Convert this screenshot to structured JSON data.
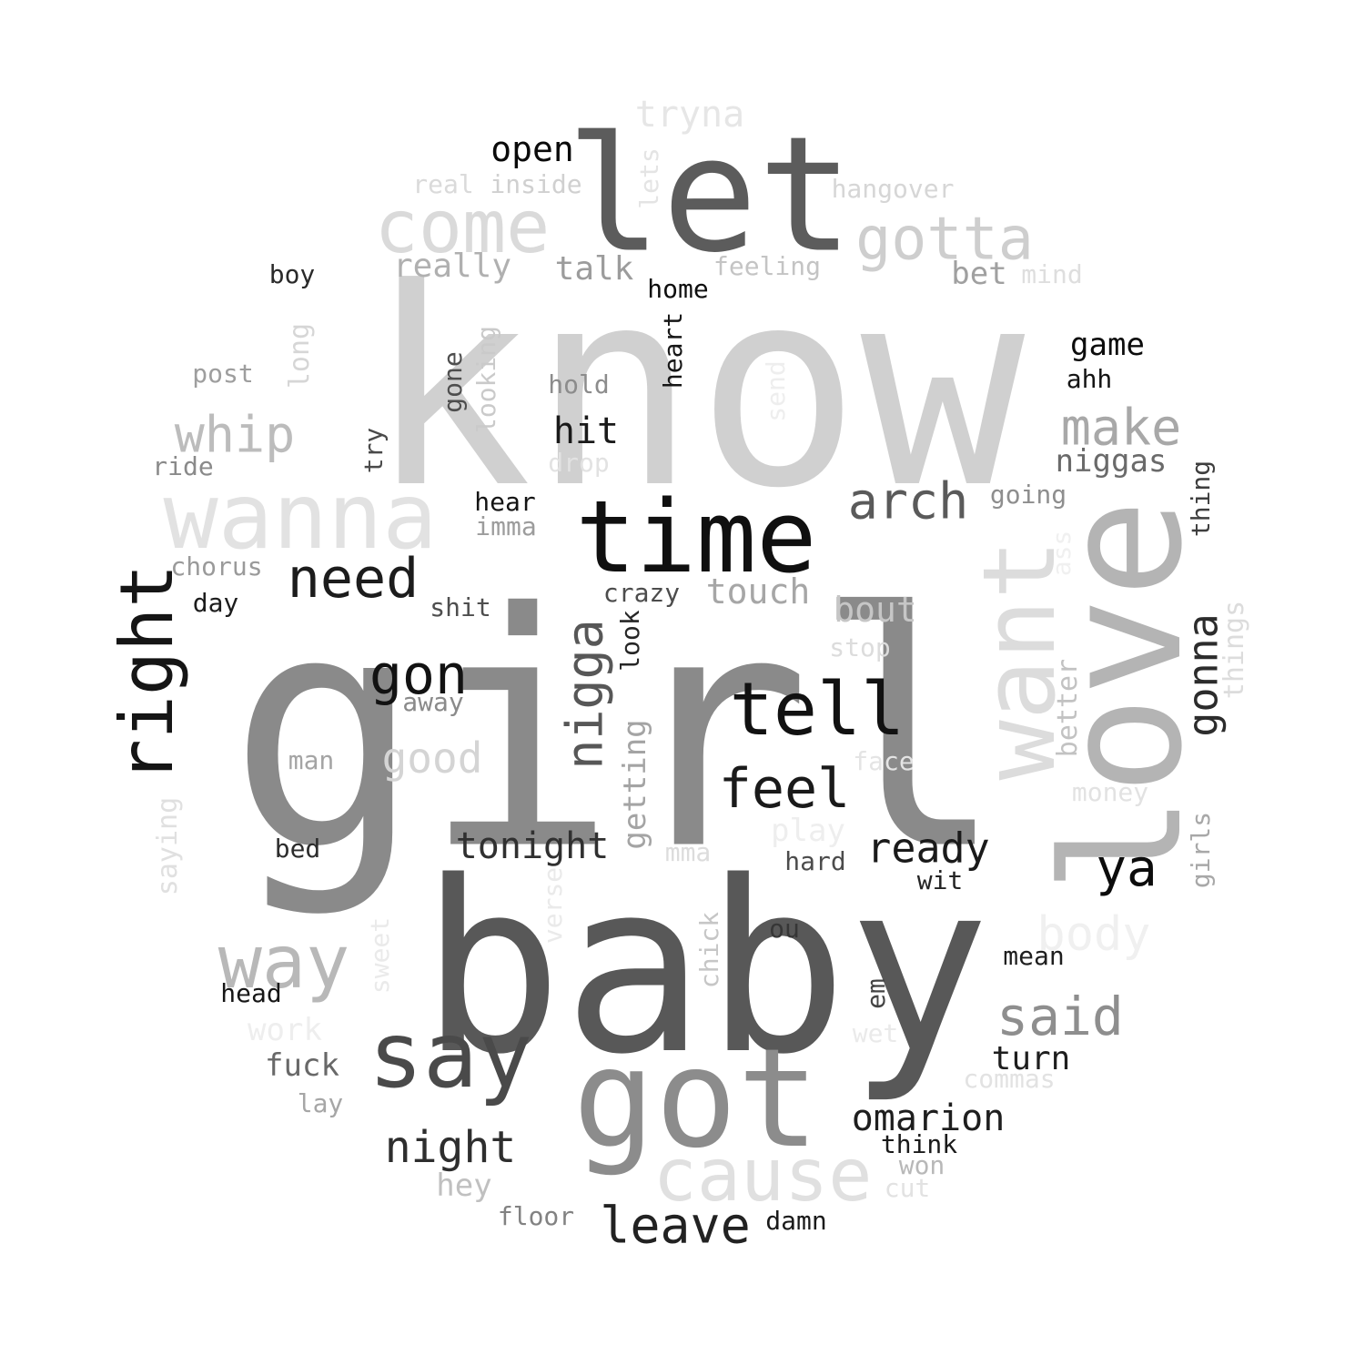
{
  "words": [
    {
      "text": "know",
      "color": "#d0d0d0"
    },
    {
      "text": "girl",
      "color": "#8a8a8a"
    },
    {
      "text": "baby",
      "color": "#585858"
    },
    {
      "text": "let",
      "color": "#5c5c5c"
    },
    {
      "text": "love",
      "color": "#b4b4b4"
    },
    {
      "text": "time",
      "color": "#101010"
    },
    {
      "text": "got",
      "color": "#8c8c8c"
    },
    {
      "text": "want",
      "color": "#dcdcdc"
    },
    {
      "text": "wanna",
      "color": "#e2e2e2"
    },
    {
      "text": "come",
      "color": "#dadada"
    },
    {
      "text": "cause",
      "color": "#e0e0e0"
    },
    {
      "text": "say",
      "color": "#4a4a4a"
    },
    {
      "text": "tell",
      "color": "#111111"
    },
    {
      "text": "gotta",
      "color": "#cecece"
    },
    {
      "text": "right",
      "color": "#151515"
    },
    {
      "text": "need",
      "color": "#1c1c1c"
    },
    {
      "text": "way",
      "color": "#b8b8b8"
    },
    {
      "text": "feel",
      "color": "#1a1a1a"
    },
    {
      "text": "arch",
      "color": "#5a5a5a"
    },
    {
      "text": "make",
      "color": "#a8a8a8"
    },
    {
      "text": "nigga",
      "color": "#575757"
    },
    {
      "text": "gonna",
      "color": "#2c2c2c"
    },
    {
      "text": "gon",
      "color": "#121212"
    },
    {
      "text": "whip",
      "color": "#bcbcbc"
    },
    {
      "text": "said",
      "color": "#8e8e8e"
    },
    {
      "text": "leave",
      "color": "#222222"
    },
    {
      "text": "night",
      "color": "#2e2e2e"
    },
    {
      "text": "body",
      "color": "#f0f0f0"
    },
    {
      "text": "ya",
      "color": "#0c0c0c"
    },
    {
      "text": "good",
      "color": "#d4d4d4"
    },
    {
      "text": "omarion",
      "color": "#1e1e1e"
    },
    {
      "text": "tonight",
      "color": "#303030"
    },
    {
      "text": "ready",
      "color": "#1a1a1a"
    },
    {
      "text": "open",
      "color": "#0a0a0a"
    },
    {
      "text": "really",
      "color": "#b0b0b0"
    },
    {
      "text": "touch",
      "color": "#a6a6a6"
    },
    {
      "text": "bout",
      "color": "#c6c6c6"
    },
    {
      "text": "hit",
      "color": "#1a1a1a"
    },
    {
      "text": "talk",
      "color": "#9c9c9c"
    },
    {
      "text": "tryna",
      "color": "#e6e6e6"
    },
    {
      "text": "turn",
      "color": "#1e1e1e"
    },
    {
      "text": "niggas",
      "color": "#6a6a6a"
    },
    {
      "text": "getting",
      "color": "#a4a4a4"
    },
    {
      "text": "bet",
      "color": "#a0a0a0"
    },
    {
      "text": "game",
      "color": "#0c0c0c"
    },
    {
      "text": "fuck",
      "color": "#686868"
    },
    {
      "text": "hey",
      "color": "#c0c0c0"
    },
    {
      "text": "work",
      "color": "#eeeeee"
    },
    {
      "text": "play",
      "color": "#eeeeee"
    },
    {
      "text": "better",
      "color": "#c2c2c2"
    },
    {
      "text": "things",
      "color": "#dcdcdc"
    },
    {
      "text": "long",
      "color": "#d6d6d6"
    },
    {
      "text": "saying",
      "color": "#e0e0e0"
    },
    {
      "text": "hangover",
      "color": "#d6d6d6"
    },
    {
      "text": "real",
      "color": "#dadada"
    },
    {
      "text": "inside",
      "color": "#d0d0d0"
    },
    {
      "text": "lets",
      "color": "#e4e4e4"
    },
    {
      "text": "feeling",
      "color": "#c4c4c4"
    },
    {
      "text": "mind",
      "color": "#dedede"
    },
    {
      "text": "boy",
      "color": "#2a2a2a"
    },
    {
      "text": "home",
      "color": "#0e0e0e"
    },
    {
      "text": "heart",
      "color": "#161616"
    },
    {
      "text": "hold",
      "color": "#8c8c8c"
    },
    {
      "text": "looking",
      "color": "#cacaca"
    },
    {
      "text": "gone",
      "color": "#4e4e4e"
    },
    {
      "text": "post",
      "color": "#9e9e9e"
    },
    {
      "text": "try",
      "color": "#4a4a4a"
    },
    {
      "text": "ride",
      "color": "#8a8a8a"
    },
    {
      "text": "drop",
      "color": "#e2e2e2"
    },
    {
      "text": "send",
      "color": "#eeeeee"
    },
    {
      "text": "ahh",
      "color": "#141414"
    },
    {
      "text": "going",
      "color": "#8e8e8e"
    },
    {
      "text": "thing",
      "color": "#3e3e3e"
    },
    {
      "text": "hear",
      "color": "#141414"
    },
    {
      "text": "imma",
      "color": "#9c9c9c"
    },
    {
      "text": "chorus",
      "color": "#9a9a9a"
    },
    {
      "text": "day",
      "color": "#1c1c1c"
    },
    {
      "text": "shit",
      "color": "#4e4e4e"
    },
    {
      "text": "crazy",
      "color": "#4c4c4c"
    },
    {
      "text": "look",
      "color": "#262626"
    },
    {
      "text": "ass",
      "color": "#f0f0f0"
    },
    {
      "text": "stop",
      "color": "#dcdcdc"
    },
    {
      "text": "away",
      "color": "#8a8a8a"
    },
    {
      "text": "man",
      "color": "#a4a4a4"
    },
    {
      "text": "face",
      "color": "#e4e4e4"
    },
    {
      "text": "money",
      "color": "#e2e2e2"
    },
    {
      "text": "bed",
      "color": "#2c2c2c"
    },
    {
      "text": "mma",
      "color": "#dcdcdc"
    },
    {
      "text": "hard",
      "color": "#4c4c4c"
    },
    {
      "text": "wit",
      "color": "#242424"
    },
    {
      "text": "girls",
      "color": "#a8a8a8"
    },
    {
      "text": "verse",
      "color": "#eaeaea"
    },
    {
      "text": "ou",
      "color": "#363636"
    },
    {
      "text": "sweet",
      "color": "#eaeaea"
    },
    {
      "text": "chick",
      "color": "#c6c6c6"
    },
    {
      "text": "mean",
      "color": "#1e1e1e"
    },
    {
      "text": "head",
      "color": "#161616"
    },
    {
      "text": "em",
      "color": "#444444"
    },
    {
      "text": "wet",
      "color": "#eaeaea"
    },
    {
      "text": "commas",
      "color": "#e2e2e2"
    },
    {
      "text": "lay",
      "color": "#a6a6a6"
    },
    {
      "text": "think",
      "color": "#1a1a1a"
    },
    {
      "text": "won",
      "color": "#b8b8b8"
    },
    {
      "text": "cut",
      "color": "#e2e2e2"
    },
    {
      "text": "floor",
      "color": "#828282"
    },
    {
      "text": "damn",
      "color": "#1a1a1a"
    }
  ]
}
